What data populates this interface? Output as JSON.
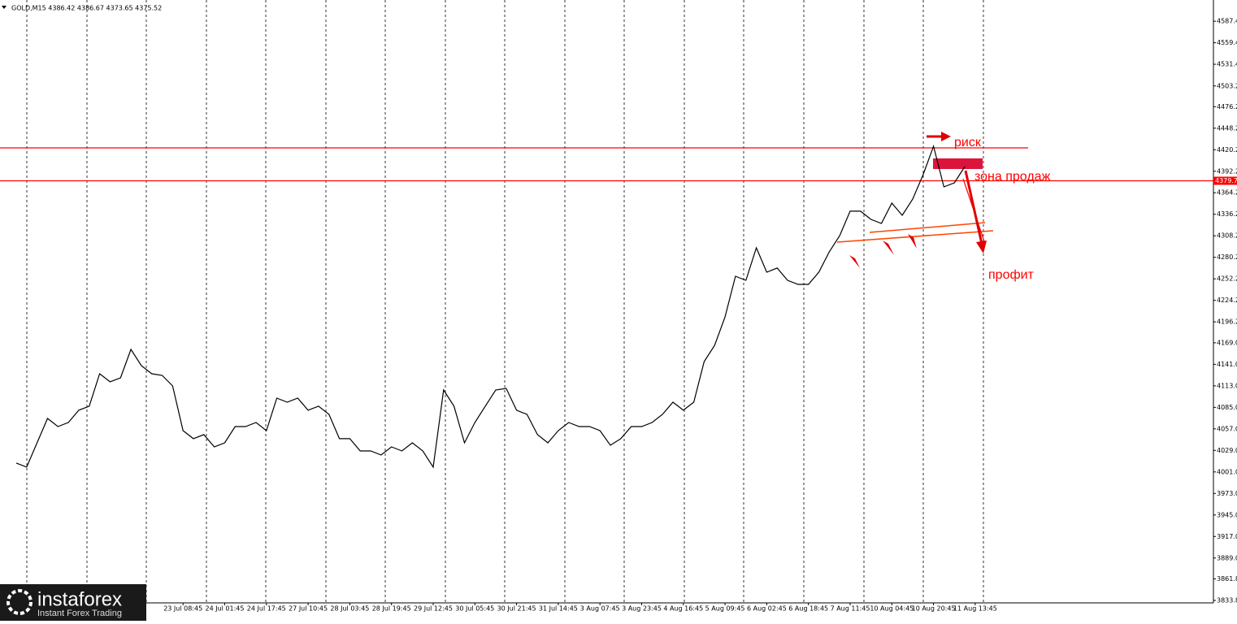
{
  "chart_data": {
    "type": "line",
    "title": "GOLD,M15  4386.42 4386.67 4373.65 4375.52",
    "categories": [
      null,
      null,
      null,
      null,
      null,
      null,
      null,
      null,
      null,
      null,
      null,
      null,
      null,
      null,
      null,
      null,
      "23 Jul 08:45",
      null,
      null,
      null,
      "24 Jul 01:45",
      null,
      null,
      null,
      "24 Jul 17:45",
      null,
      null,
      null,
      "27 Jul 10:45",
      null,
      null,
      null,
      "28 Jul 03:45",
      null,
      null,
      null,
      "28 Jul 19:45",
      null,
      null,
      null,
      "29 Jul 12:45",
      null,
      null,
      null,
      "30 Jul 05:45",
      null,
      null,
      null,
      "30 Jul 21:45",
      null,
      null,
      null,
      "31 Jul 14:45",
      null,
      null,
      null,
      "3 Aug 07:45",
      null,
      null,
      null,
      "3 Aug 23:45",
      null,
      null,
      null,
      "4 Aug 16:45",
      null,
      null,
      null,
      "5 Aug 09:45",
      null,
      null,
      null,
      "6 Aug 02:45",
      null,
      null,
      null,
      "6 Aug 18:45",
      null,
      null,
      null,
      "7 Aug 11:45",
      null,
      null,
      null,
      "10 Aug 04:45",
      null,
      null,
      null,
      "10 Aug 20:45",
      null,
      null,
      null,
      "11 Aug 13:45"
    ],
    "series": [
      {
        "name": "GOLD",
        "color": "#000000",
        "values": [
          4012.5,
          4007.2,
          4038.9,
          4070.6,
          4060.0,
          4065.3,
          4081.2,
          4086.5,
          4128.7,
          4118.2,
          4123.4,
          4160.4,
          4139.3,
          4128.7,
          4126.6,
          4112.9,
          4054.7,
          4044.2,
          4049.5,
          4033.6,
          4038.9,
          4060.0,
          4060.0,
          4065.3,
          4054.7,
          4097.0,
          4091.7,
          4097.0,
          4081.2,
          4086.5,
          4075.9,
          4044.2,
          4044.2,
          4028.3,
          4028.3,
          4023.0,
          4033.6,
          4028.3,
          4038.9,
          4028.3,
          4007.2,
          4107.6,
          4086.5,
          4038.9,
          4065.3,
          4086.5,
          4107.6,
          4109.7,
          4081.2,
          4075.9,
          4049.5,
          4038.9,
          4054.7,
          4065.3,
          4060.0,
          4060.0,
          4054.7,
          4035.7,
          4044.2,
          4060.0,
          4060.0,
          4065.3,
          4075.9,
          4091.7,
          4081.2,
          4091.7,
          4144.6,
          4165.7,
          4202.7,
          4255.6,
          4250.3,
          4292.6,
          4260.9,
          4266.2,
          4250.3,
          4245.0,
          4245.0,
          4260.9,
          4287.3,
          4308.4,
          4340.2,
          4340.2,
          4329.6,
          4324.3,
          4350.7,
          4334.9,
          4356.0,
          4387.7,
          4424.7,
          4371.9,
          4377.1,
          4398.3,
          null
        ]
      }
    ],
    "ylim": [
      3830.6,
      4615
    ],
    "yticks": [
      {
        "value": 3833.8,
        "label": "3833.80"
      },
      {
        "value": 3861.8,
        "label": "3861.80"
      },
      {
        "value": 3889,
        "label": "3889.00"
      },
      {
        "value": 3917,
        "label": "3917.00"
      },
      {
        "value": 3945,
        "label": "3945.00"
      },
      {
        "value": 3973,
        "label": "3973.00"
      },
      {
        "value": 4001,
        "label": "4001.00"
      },
      {
        "value": 4029,
        "label": "4029.00"
      },
      {
        "value": 4057,
        "label": "4057.00"
      },
      {
        "value": 4085,
        "label": "4085.00"
      },
      {
        "value": 4113,
        "label": "4113.00"
      },
      {
        "value": 4141,
        "label": "4141.00"
      },
      {
        "value": 4169,
        "label": "4169.00"
      },
      {
        "value": 4196.2,
        "label": "4196.20"
      },
      {
        "value": 4224.2,
        "label": "4224.20"
      },
      {
        "value": 4252.2,
        "label": "4252.20"
      },
      {
        "value": 4280.2,
        "label": "4280.20"
      },
      {
        "value": 4308.2,
        "label": "4308.20"
      },
      {
        "value": 4336.2,
        "label": "4336.20"
      },
      {
        "value": 4364.2,
        "label": "4364.20"
      },
      {
        "value": 4392.2,
        "label": "4392.20"
      },
      {
        "value": 4420.2,
        "label": "4420.20"
      },
      {
        "value": 4448.2,
        "label": "4448.20"
      },
      {
        "value": 4476.2,
        "label": "4476.20"
      },
      {
        "value": 4503.2,
        "label": "4503.20"
      },
      {
        "value": 4531.4,
        "label": "4531.40"
      },
      {
        "value": 4559.4,
        "label": "4559.40"
      },
      {
        "value": 4587.4,
        "label": "4587.40"
      }
    ],
    "levels": [
      {
        "value": 4422.6,
        "color": "#ff0000"
      },
      {
        "value": 4379.78,
        "label": "4379.78",
        "color": "#ff0000"
      }
    ],
    "sell_zone": {
      "range": [
        4395.1,
        4408.9
      ],
      "color": "#dc143c"
    },
    "annotations": [
      "риск",
      "зона продаж",
      "профит"
    ]
  },
  "logo": {
    "name": "instaforex",
    "tagline": "Instant Forex Trading"
  }
}
